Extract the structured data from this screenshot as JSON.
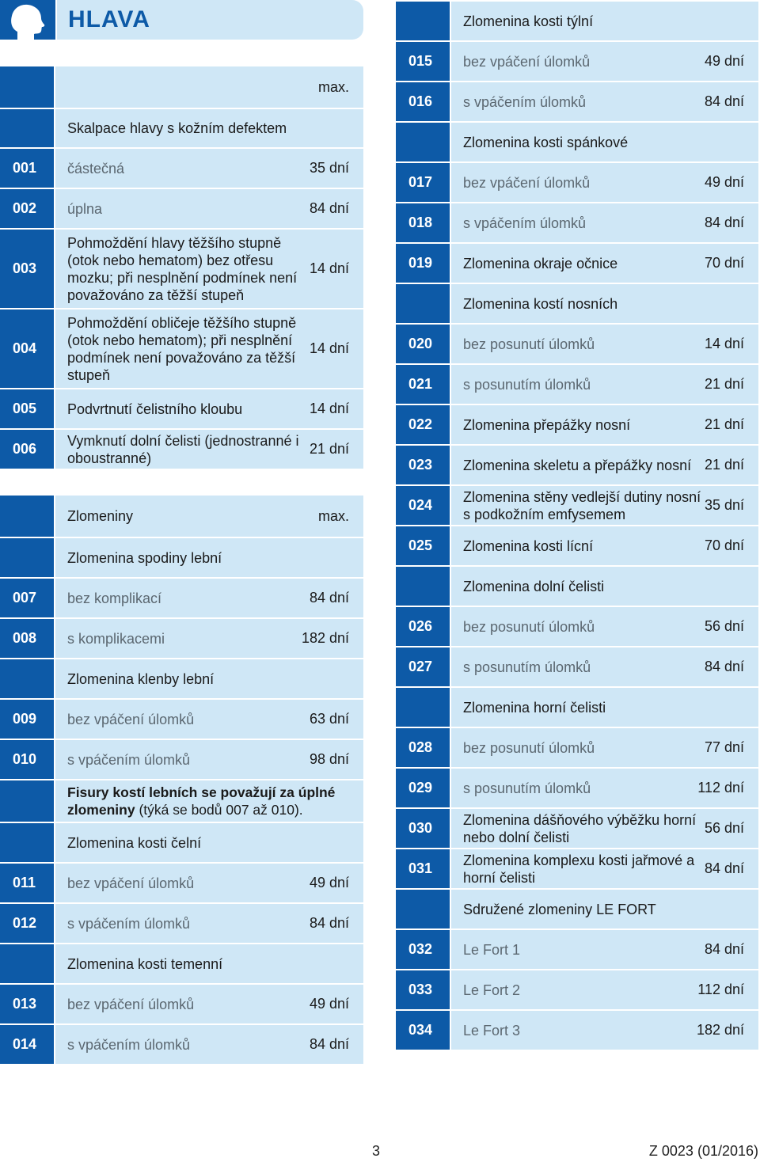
{
  "header": {
    "title": "HLAVA",
    "icon": "head-profile-icon"
  },
  "left": [
    {
      "type": "head",
      "code": "",
      "label": "",
      "value": "max.",
      "h": 52
    },
    {
      "type": "plain",
      "code": "",
      "label": "Skalpace hlavy s kožním defektem",
      "value": "",
      "h": 48
    },
    {
      "type": "gray",
      "code": "001",
      "label": "částečná",
      "value": "35 dní",
      "h": 49
    },
    {
      "type": "gray",
      "code": "002",
      "label": "úplna",
      "value": "84 dní",
      "h": 49
    },
    {
      "type": "plain",
      "code": "003",
      "label": "Pohmoždění hlavy těžšího stupně (otok nebo hematom) bez otřesu mozku; při nesplnění podmínek není považováno za těžší stupeň",
      "value": "14 dní",
      "h": 99
    },
    {
      "type": "plain",
      "code": "004",
      "label": "Pohmoždění obličeje těžšího stupně (otok nebo hematom); při nesplnění podmínek není považováno za těžší stupeň",
      "value": "14 dní",
      "h": 99
    },
    {
      "type": "plain",
      "code": "005",
      "label": "Podvrtnutí čelistního kloubu",
      "value": "14 dní",
      "h": 49
    },
    {
      "type": "plain",
      "code": "006",
      "label": "Vymknutí dolní čelisti (jednostranné i oboustranné)",
      "value": "21 dní",
      "h": 49
    },
    {
      "type": "gap",
      "h": 32
    },
    {
      "type": "head",
      "code": "",
      "label": "Zlomeniny",
      "value": "max.",
      "h": 52
    },
    {
      "type": "plain",
      "code": "",
      "label": "Zlomenina spodiny lební",
      "value": "",
      "h": 49
    },
    {
      "type": "gray",
      "code": "007",
      "label": "bez komplikací",
      "value": "84 dní",
      "h": 49
    },
    {
      "type": "gray",
      "code": "008",
      "label": "s komplikacemi",
      "value": "182 dní",
      "h": 49
    },
    {
      "type": "plain",
      "code": "",
      "label": "Zlomenina klenby lební",
      "value": "",
      "h": 49
    },
    {
      "type": "gray",
      "code": "009",
      "label": "bez vpáčení úlomků",
      "value": "63 dní",
      "h": 49
    },
    {
      "type": "gray",
      "code": "010",
      "label": "s vpáčením úlomků",
      "value": "98 dní",
      "h": 49
    },
    {
      "type": "note",
      "code": "",
      "bold": "Fisury kostí lebních se považují za úplné zlomeniny",
      "label": " (týká se bodů 007 až 010).",
      "value": "",
      "h": 52
    },
    {
      "type": "plain",
      "code": "",
      "label": "Zlomenina kosti čelní",
      "value": "",
      "h": 49
    },
    {
      "type": "gray",
      "code": "011",
      "label": "bez vpáčení úlomků",
      "value": "49 dní",
      "h": 49
    },
    {
      "type": "gray",
      "code": "012",
      "label": "s vpáčením úlomků",
      "value": "84 dní",
      "h": 49
    },
    {
      "type": "plain",
      "code": "",
      "label": "Zlomenina kosti temenní",
      "value": "",
      "h": 49
    },
    {
      "type": "gray",
      "code": "013",
      "label": "bez vpáčení úlomků",
      "value": "49 dní",
      "h": 49
    },
    {
      "type": "gray",
      "code": "014",
      "label": "s vpáčením úlomků",
      "value": "84 dní",
      "h": 49
    }
  ],
  "right": [
    {
      "type": "plain",
      "code": "",
      "label": "Zlomenina kosti týlní",
      "value": "",
      "h": 49
    },
    {
      "type": "gray",
      "code": "015",
      "label": "bez vpáčení úlomků",
      "value": "49 dní",
      "h": 49
    },
    {
      "type": "gray",
      "code": "016",
      "label": "s vpáčením úlomků",
      "value": "84 dní",
      "h": 49
    },
    {
      "type": "plain",
      "code": "",
      "label": "Zlomenina kosti spánkové",
      "value": "",
      "h": 49
    },
    {
      "type": "gray",
      "code": "017",
      "label": "bez vpáčení úlomků",
      "value": "49 dní",
      "h": 49
    },
    {
      "type": "gray",
      "code": "018",
      "label": "s vpáčením úlomků",
      "value": "84 dní",
      "h": 49
    },
    {
      "type": "plain",
      "code": "019",
      "label": "Zlomenina okraje očnice",
      "value": "70 dní",
      "h": 49
    },
    {
      "type": "plain",
      "code": "",
      "label": "Zlomenina kostí nosních",
      "value": "",
      "h": 49
    },
    {
      "type": "gray",
      "code": "020",
      "label": "bez posunutí úlomků",
      "value": "14 dní",
      "h": 49
    },
    {
      "type": "gray",
      "code": "021",
      "label": "s posunutím úlomků",
      "value": "21 dní",
      "h": 49
    },
    {
      "type": "plain",
      "code": "022",
      "label": "Zlomenina přepážky nosní",
      "value": "21 dní",
      "h": 49
    },
    {
      "type": "plain",
      "code": "023",
      "label": "Zlomenina skeletu a přepážky nosní",
      "value": "21 dní",
      "h": 49
    },
    {
      "type": "plain",
      "code": "024",
      "label": "Zlomenina stěny vedlejší dutiny nosní s podkožním emfysemem",
      "value": "35 dní",
      "h": 49
    },
    {
      "type": "plain",
      "code": "025",
      "label": "Zlomenina kosti lícní",
      "value": "70 dní",
      "h": 49
    },
    {
      "type": "plain",
      "code": "",
      "label": "Zlomenina dolní čelisti",
      "value": "",
      "h": 49
    },
    {
      "type": "gray",
      "code": "026",
      "label": "bez posunutí úlomků",
      "value": "56 dní",
      "h": 49
    },
    {
      "type": "gray",
      "code": "027",
      "label": "s posunutím úlomků",
      "value": "84 dní",
      "h": 49
    },
    {
      "type": "plain",
      "code": "",
      "label": "Zlomenina horní čelisti",
      "value": "",
      "h": 49
    },
    {
      "type": "gray",
      "code": "028",
      "label": "bez posunutí úlomků",
      "value": "77 dní",
      "h": 49
    },
    {
      "type": "gray",
      "code": "029",
      "label": "s posunutím úlomků",
      "value": "112 dní",
      "h": 49
    },
    {
      "type": "plain",
      "code": "030",
      "label": "Zlomenina dášňového výběžku horní nebo dolní čelisti",
      "value": "56 dní",
      "h": 49
    },
    {
      "type": "plain",
      "code": "031",
      "label": "Zlomenina komplexu kosti jařmové a horní čelisti",
      "value": "84 dní",
      "h": 49
    },
    {
      "type": "plain",
      "code": "",
      "label": "Sdružené zlomeniny LE FORT",
      "value": "",
      "h": 49
    },
    {
      "type": "gray",
      "code": "032",
      "label": "Le Fort 1",
      "value": "84 dní",
      "h": 49
    },
    {
      "type": "gray",
      "code": "033",
      "label": "Le Fort 2",
      "value": "112 dní",
      "h": 49
    },
    {
      "type": "gray",
      "code": "034",
      "label": "Le Fort 3",
      "value": "182 dní",
      "h": 49
    }
  ],
  "footer": {
    "page_number": "3",
    "doc_code": "Z 0023 (01/2016)"
  }
}
